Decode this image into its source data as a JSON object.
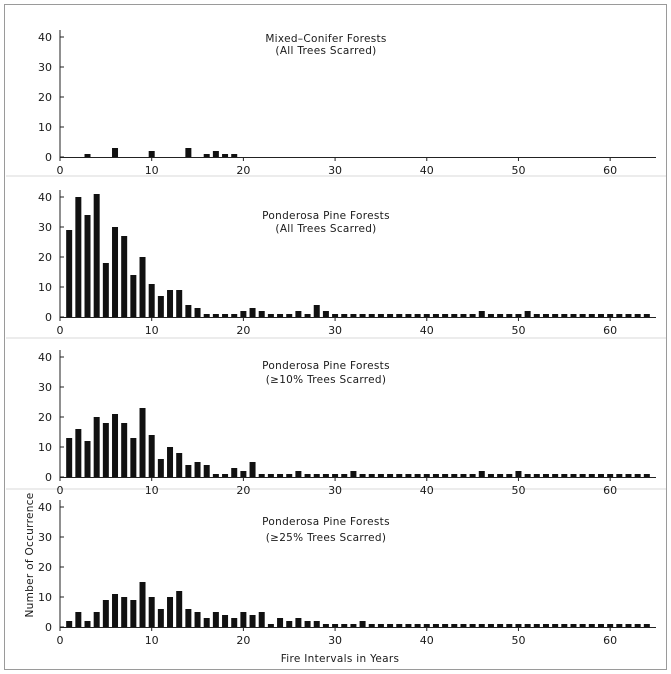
{
  "chart_data": [
    {
      "type": "bar",
      "title": "Mixed–Conifer Forests",
      "subtitle": "(All Trees Scarred)",
      "ylim": [
        0,
        40
      ],
      "yticks": [
        0,
        10,
        20,
        30,
        40
      ],
      "xlim": [
        0,
        65
      ],
      "xticks": [
        0,
        10,
        20,
        30,
        40,
        50,
        60
      ],
      "x": [
        3,
        6,
        10,
        14,
        16,
        17,
        18,
        19
      ],
      "values": [
        1,
        3,
        2,
        3,
        1,
        2,
        1,
        1
      ]
    },
    {
      "type": "bar",
      "title": "Ponderosa Pine Forests",
      "subtitle": "(All Trees Scarred)",
      "ylim": [
        0,
        40
      ],
      "yticks": [
        0,
        10,
        20,
        30,
        40
      ],
      "xlim": [
        0,
        65
      ],
      "xticks": [
        0,
        10,
        20,
        30,
        40,
        50,
        60
      ],
      "x": [
        1,
        2,
        3,
        4,
        5,
        6,
        7,
        8,
        9,
        10,
        11,
        12,
        13,
        14,
        15,
        16,
        17,
        18,
        19,
        20,
        21,
        22,
        23,
        24,
        25,
        26,
        27,
        28,
        29,
        30,
        31,
        32,
        33,
        34,
        35,
        36,
        37,
        38,
        39,
        40,
        41,
        42,
        43,
        44,
        45,
        46,
        47,
        48,
        49,
        50,
        51,
        52,
        53,
        54,
        55,
        56,
        57,
        58,
        59,
        60,
        61,
        62,
        63,
        64
      ],
      "values": [
        29,
        40,
        34,
        41,
        18,
        30,
        27,
        14,
        20,
        11,
        7,
        9,
        9,
        4,
        3,
        1,
        1,
        1,
        1,
        2,
        3,
        2,
        1,
        1,
        1,
        2,
        1,
        4,
        2,
        1,
        1,
        1,
        1,
        1,
        1,
        1,
        1,
        1,
        1,
        1,
        1,
        1,
        1,
        1,
        1,
        2,
        1,
        1,
        1,
        1,
        2,
        1,
        1,
        1,
        1,
        1,
        1,
        1,
        1,
        1,
        1,
        1,
        1,
        1
      ]
    },
    {
      "type": "bar",
      "title": "Ponderosa Pine Forests",
      "subtitle": "(≥10% Trees Scarred)",
      "ylim": [
        0,
        40
      ],
      "yticks": [
        0,
        10,
        20,
        30,
        40
      ],
      "xlim": [
        0,
        65
      ],
      "xticks": [
        0,
        10,
        20,
        30,
        40,
        50,
        60
      ],
      "x": [
        1,
        2,
        3,
        4,
        5,
        6,
        7,
        8,
        9,
        10,
        11,
        12,
        13,
        14,
        15,
        16,
        17,
        18,
        19,
        20,
        21,
        22,
        23,
        24,
        25,
        26,
        27,
        28,
        29,
        30,
        31,
        32,
        33,
        34,
        35,
        36,
        37,
        38,
        39,
        40,
        41,
        42,
        43,
        44,
        45,
        46,
        47,
        48,
        49,
        50,
        51,
        52,
        53,
        54,
        55,
        56,
        57,
        58,
        59,
        60,
        61,
        62,
        63,
        64
      ],
      "values": [
        13,
        16,
        12,
        20,
        18,
        21,
        18,
        13,
        23,
        14,
        6,
        10,
        8,
        4,
        5,
        4,
        1,
        1,
        3,
        2,
        5,
        1,
        1,
        1,
        1,
        2,
        1,
        1,
        1,
        1,
        1,
        2,
        1,
        1,
        1,
        1,
        1,
        1,
        1,
        1,
        1,
        1,
        1,
        1,
        1,
        2,
        1,
        1,
        1,
        2,
        1,
        1,
        1,
        1,
        1,
        1,
        1,
        1,
        1,
        1,
        1,
        1,
        1,
        1
      ]
    },
    {
      "type": "bar",
      "title": "Ponderosa Pine Forests",
      "subtitle": "(≥25% Trees Scarred)",
      "ylabel": "Number of Occurrence",
      "xlabel": "Fire Intervals in Years",
      "ylim": [
        0,
        40
      ],
      "yticks": [
        0,
        10,
        20,
        30,
        40
      ],
      "xlim": [
        0,
        65
      ],
      "xticks": [
        0,
        10,
        20,
        30,
        40,
        50,
        60
      ],
      "x": [
        1,
        2,
        3,
        4,
        5,
        6,
        7,
        8,
        9,
        10,
        11,
        12,
        13,
        14,
        15,
        16,
        17,
        18,
        19,
        20,
        21,
        22,
        23,
        24,
        25,
        26,
        27,
        28,
        29,
        30,
        31,
        32,
        33,
        34,
        35,
        36,
        37,
        38,
        39,
        40,
        41,
        42,
        43,
        44,
        45,
        46,
        47,
        48,
        49,
        50,
        51,
        52,
        53,
        54,
        55,
        56,
        57,
        58,
        59,
        60,
        61,
        62,
        63,
        64
      ],
      "values": [
        2,
        5,
        2,
        5,
        9,
        11,
        10,
        9,
        15,
        10,
        6,
        10,
        12,
        6,
        5,
        3,
        5,
        4,
        3,
        5,
        4,
        5,
        1,
        3,
        2,
        3,
        2,
        2,
        1,
        1,
        1,
        1,
        2,
        1,
        1,
        1,
        1,
        1,
        1,
        1,
        1,
        1,
        1,
        1,
        1,
        1,
        1,
        1,
        1,
        1,
        1,
        1,
        1,
        1,
        1,
        1,
        1,
        1,
        1,
        1,
        1,
        1,
        1,
        1
      ]
    }
  ]
}
